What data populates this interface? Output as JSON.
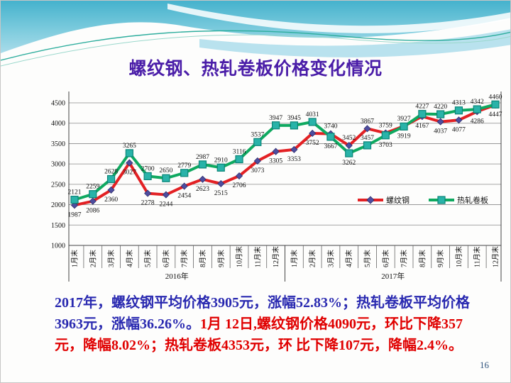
{
  "slide": {
    "title": "螺纹钢、热轧卷板价格变化情况",
    "page_number": "16",
    "summary": {
      "blue_text": "2017年，螺纹钢平均价格3905元，涨幅52.83%；热轧卷板平均价格3963元，涨幅36.26%。",
      "red_text": "1月 12日,螺纹钢价格4090元，环比下降357元，降幅8.02%；热轧卷板4353元，环 比下降107元，降幅2.4%。"
    },
    "colors": {
      "title": "#4a1da8",
      "summary_blue": "#2929b0",
      "summary_red": "#e00000",
      "header_teal": "#49b5cf",
      "page_number": "#31557f"
    }
  },
  "chart_data": {
    "type": "line",
    "title": "",
    "xlabel": "",
    "ylabel": "",
    "grid": true,
    "legend_position": "inside-right",
    "y_axis": {
      "min": 1000,
      "max": 4500,
      "step": 500,
      "ticks": [
        1000,
        1500,
        2000,
        2500,
        3000,
        3500,
        4000,
        4500
      ]
    },
    "x_groups": [
      {
        "year": "2016年",
        "months": [
          "1月末",
          "2月末",
          "3月末",
          "4月末",
          "5月末",
          "6月末",
          "7月末",
          "8月末",
          "9月末",
          "10月末",
          "11月末",
          "12月末"
        ]
      },
      {
        "year": "2017年",
        "months": [
          "1月末",
          "2月末",
          "3月末",
          "4月末",
          "5月末",
          "6月末",
          "7月末",
          "8月末",
          "9月末",
          "10月末",
          "11月末",
          "12月末"
        ]
      }
    ],
    "series": [
      {
        "name": "螺纹钢",
        "color": "#e32124",
        "marker": "diamond",
        "marker_color": "#4e4d9f",
        "values": [
          1987,
          2086,
          2360,
          3027,
          2278,
          2244,
          2454,
          2623,
          2515,
          2706,
          3073,
          3305,
          3353,
          3752,
          3740,
          3452,
          3867,
          3759,
          3927,
          4167,
          4037,
          4077,
          4286,
          4447
        ]
      },
      {
        "name": "热轧卷板",
        "color": "#0fa960",
        "marker": "square",
        "marker_color": "#29b3a9",
        "values": [
          2121,
          2259,
          2628,
          3265,
          2700,
          2650,
          2779,
          2987,
          2910,
          3116,
          3537,
          3947,
          3945,
          4031,
          3667,
          3262,
          3457,
          3703,
          3919,
          4227,
          4220,
          4313,
          4342,
          4460
        ]
      }
    ]
  }
}
